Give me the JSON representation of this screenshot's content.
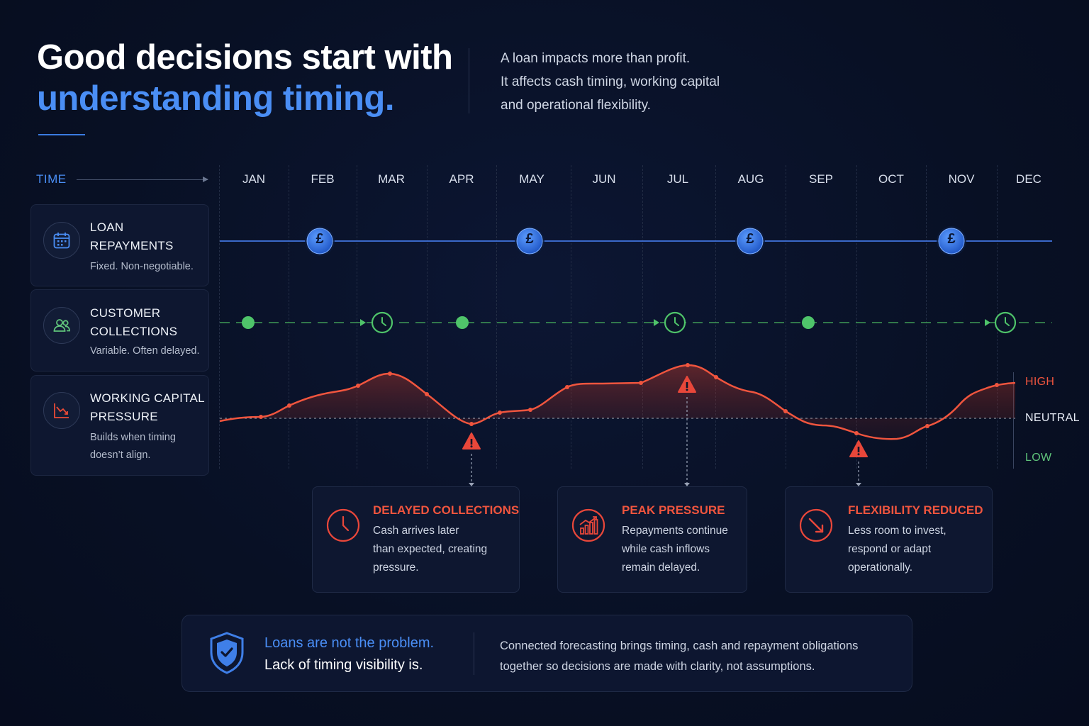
{
  "header": {
    "title_line1": "Good decisions start with",
    "title_line2": "understanding timing.",
    "intro_lines": [
      "A loan impacts more than profit.",
      "It affects cash timing, working capital",
      "and operational flexibility."
    ]
  },
  "timeline": {
    "time_label": "TIME",
    "months": [
      "JAN",
      "FEB",
      "MAR",
      "APR",
      "MAY",
      "JUN",
      "JUL",
      "AUG",
      "SEP",
      "OCT",
      "NOV",
      "DEC"
    ]
  },
  "rows": [
    {
      "title_line1": "LOAN",
      "title_line2": "REPAYMENTS",
      "subtitle_lines": [
        "Fixed. Non-negotiable."
      ],
      "icon": "calendar-icon"
    },
    {
      "title_line1": "CUSTOMER",
      "title_line2": "COLLECTIONS",
      "subtitle_lines": [
        "Variable. Often delayed."
      ],
      "icon": "people-icon"
    },
    {
      "title_line1": "WORKING CAPITAL",
      "title_line2": "PRESSURE",
      "subtitle_lines": [
        "Builds when timing",
        "doesn’t align."
      ],
      "icon": "declining-chart-icon"
    }
  ],
  "repayment_markers": {
    "symbol": "£",
    "months": [
      "FEB",
      "MAY",
      "AUG",
      "NOV"
    ]
  },
  "pressure_levels": {
    "high": "HIGH",
    "neutral": "NEUTRAL",
    "low": "LOW"
  },
  "callouts": [
    {
      "title": "DELAYED COLLECTIONS",
      "lines": [
        "Cash arrives later",
        "than expected, creating",
        "pressure."
      ],
      "icon": "clock-icon"
    },
    {
      "title": "PEAK PRESSURE",
      "lines": [
        "Repayments continue",
        "while cash inflows",
        "remain delayed."
      ],
      "icon": "bar-chart-up-icon"
    },
    {
      "title": "FLEXIBILITY REDUCED",
      "lines": [
        "Less room to invest,",
        "respond or adapt",
        "operationally."
      ],
      "icon": "diagonal-arrow-icon"
    }
  ],
  "footer": {
    "quote_line1": "Loans are not the problem.",
    "quote_line2": "Lack of timing visibility is.",
    "text_lines": [
      "Connected forecasting brings timing, cash and repayment obligations",
      "together so decisions are made with clarity, not assumptions."
    ],
    "icon": "shield-check-icon"
  },
  "colors": {
    "background": "#081024",
    "accent_blue": "#4a8ef5",
    "alert_red": "#f0553e",
    "collections_green": "#4fc46a",
    "card_bg": "#0e1730"
  }
}
